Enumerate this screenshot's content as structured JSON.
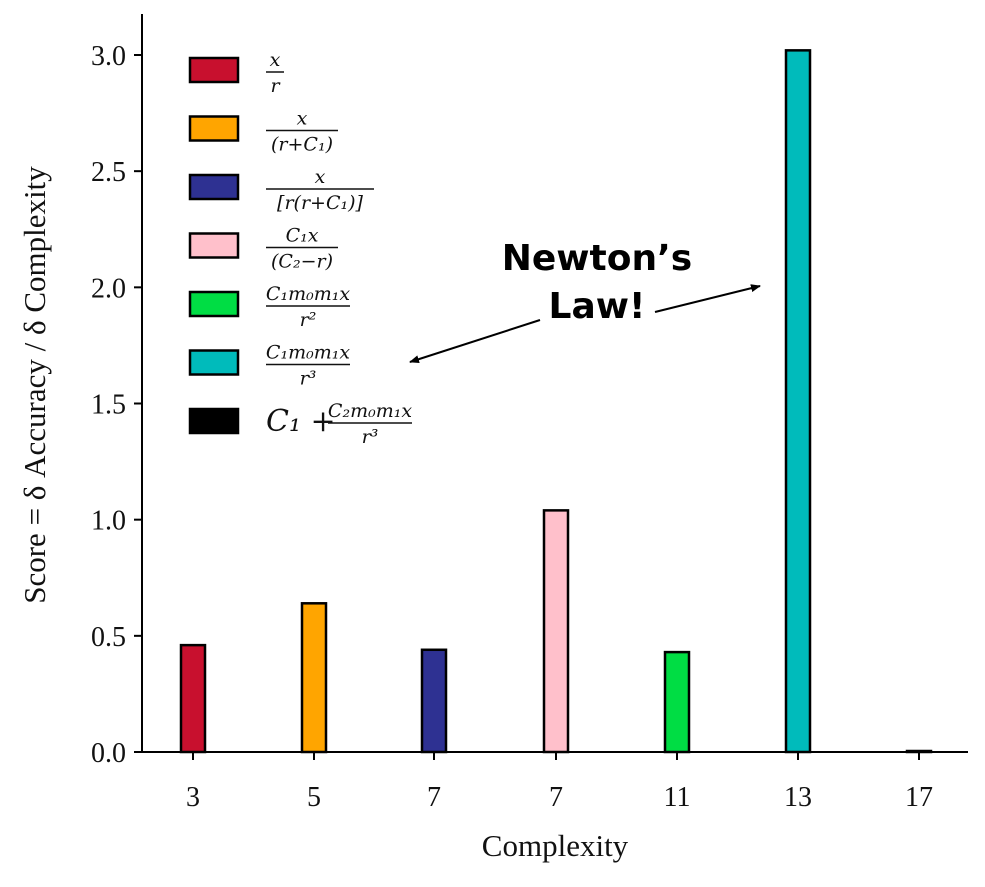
{
  "chart_data": {
    "type": "bar",
    "categories": [
      "3",
      "5",
      "7",
      "7",
      "11",
      "13",
      "17"
    ],
    "values": [
      0.46,
      0.64,
      0.44,
      1.04,
      0.43,
      3.02,
      0.0
    ],
    "colors": [
      "#c8102e",
      "#ffa500",
      "#2e3192",
      "#ffc0cb",
      "#00dd44",
      "#00bbbb",
      "#000000"
    ],
    "legend": [
      {
        "num": "x",
        "den": "r"
      },
      {
        "num": "x",
        "den": "(r+C₁)"
      },
      {
        "num": "x",
        "den": "[r(r+C₁)]"
      },
      {
        "num": "C₁x",
        "den": "(C₂−r)"
      },
      {
        "num": "C₁m₀m₁x",
        "den": "r²"
      },
      {
        "num": "C₁m₀m₁x",
        "den": "r³"
      },
      {
        "prefix": "C₁ +",
        "num": "C₂m₀m₁x",
        "den": "r³"
      }
    ],
    "legend_position": "top-left",
    "yticks": [
      "0.0",
      "0.5",
      "1.0",
      "1.5",
      "2.0",
      "2.5",
      "3.0"
    ],
    "ylim": [
      0,
      3.18
    ],
    "xlabel": "Complexity",
    "ylabel": "Score = δ Accuracy / δ Complexity",
    "annotation": {
      "line1": "Newton’s",
      "line2": "Law!"
    },
    "grid": false
  }
}
